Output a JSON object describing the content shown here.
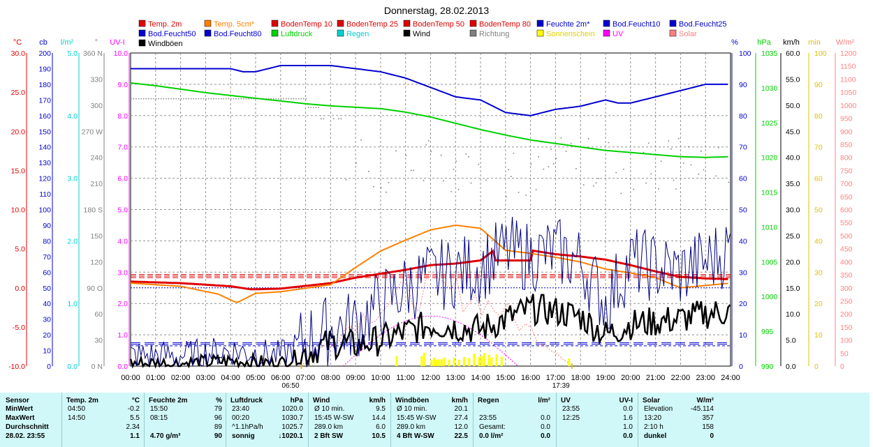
{
  "title": "Donnerstag, 28.02.2013",
  "colors": {
    "temp2m": "#e00000",
    "temp5cm": "#ff8000",
    "bodenTemp": "#e00000",
    "feuchte": "#0000d0",
    "luftdruck": "#00d000",
    "regen": "#00d0d0",
    "wind": "#000000",
    "richtung": "#808080",
    "sonne": "#ffff00",
    "uv": "#ff00ff",
    "solar": "#ff8080",
    "stats_bg": "#d0f8f8"
  },
  "legend": [
    {
      "label": "Temp. 2m",
      "color": "#e00000"
    },
    {
      "label": "Temp. 5cm*",
      "color": "#ff8000"
    },
    {
      "label": "BodenTemp 10",
      "color": "#e00000"
    },
    {
      "label": "BodenTemp 25",
      "color": "#e00000"
    },
    {
      "label": "BodenTemp 50",
      "color": "#e00000"
    },
    {
      "label": "BodenTemp 80",
      "color": "#e00000"
    },
    {
      "label": "Feuchte 2m*",
      "color": "#0000d0"
    },
    {
      "label": "Bod.Feucht10",
      "color": "#0000d0"
    },
    {
      "label": "Bod.Feucht25",
      "color": "#0000d0"
    },
    {
      "label": "Bod.Feucht50",
      "color": "#0000d0"
    },
    {
      "label": "Bod.Feucht80",
      "color": "#0000d0"
    },
    {
      "label": "Luftdruck",
      "color": "#00d000"
    },
    {
      "label": "Regen",
      "color": "#00d0d0"
    },
    {
      "label": "Wind",
      "color": "#000000"
    },
    {
      "label": "Richtung",
      "color": "#808080"
    },
    {
      "label": "Sonnenschein",
      "color": "#ffff00"
    },
    {
      "label": "UV",
      "color": "#ff00ff"
    },
    {
      "label": "Solar",
      "color": "#ff8080"
    },
    {
      "label": "Windböen",
      "color": "#000000"
    }
  ],
  "chart_data": {
    "type": "line",
    "title": "Donnerstag, 28.02.2013",
    "x_ticks": [
      "00:00",
      "01:00",
      "02:00",
      "03:00",
      "04:00",
      "05:00",
      "06:00",
      "07:00",
      "08:00",
      "09:00",
      "10:00",
      "11:00",
      "12:00",
      "13:00",
      "14:00",
      "15:00",
      "16:00",
      "17:00",
      "18:00",
      "19:00",
      "20:00",
      "21:00",
      "22:00",
      "23:00",
      "24:00"
    ],
    "sunrise": "06:50",
    "sunset": "17:39",
    "grid": true,
    "axes": [
      {
        "unit": "°C",
        "color": "#e00000",
        "ticks": [
          "30.0",
          "25.0",
          "20.0",
          "15.0",
          "10.0",
          "5.0",
          "0.0",
          "-5.0",
          "-10.0"
        ]
      },
      {
        "unit": "cb",
        "color": "#0000d0",
        "ticks": [
          "200",
          "190",
          "180",
          "170",
          "160",
          "150",
          "140",
          "130",
          "120",
          "110",
          "100",
          "90",
          "80",
          "70",
          "60",
          "50",
          "40",
          "30",
          "20",
          "10",
          "0"
        ]
      },
      {
        "unit": "l/m²",
        "color": "#00d0d0",
        "ticks": [
          "5.0",
          "4.0",
          "3.0",
          "2.0",
          "1.0",
          "0.0"
        ]
      },
      {
        "unit": "°",
        "color": "#808080",
        "ticks": [
          "360 N",
          "330",
          "300",
          "270 W",
          "240",
          "210",
          "180 S",
          "150",
          "120",
          "90 O",
          "60",
          "30",
          "0 N"
        ]
      },
      {
        "unit": "UV-I",
        "color": "#ff00ff",
        "ticks": [
          "10.0",
          "9.0",
          "8.0",
          "7.0",
          "6.0",
          "5.0",
          "4.0",
          "3.0",
          "2.0",
          "1.0",
          "0.0"
        ]
      },
      {
        "unit": "%",
        "color": "#0000d0",
        "ticks": [
          "100",
          "90",
          "80",
          "70",
          "60",
          "50",
          "40",
          "30",
          "20",
          "10",
          "0"
        ]
      },
      {
        "unit": "hPa",
        "color": "#00d000",
        "ticks": [
          "1035",
          "1030",
          "1025",
          "1020",
          "1015",
          "1010",
          "1005",
          "1000",
          "995",
          "990"
        ]
      },
      {
        "unit": "km/h",
        "color": "#000000",
        "ticks": [
          "60.0",
          "55.0",
          "50.0",
          "45.0",
          "40.0",
          "35.0",
          "30.0",
          "25.0",
          "20.0",
          "15.0",
          "10.0",
          "5.0",
          "0.0"
        ]
      },
      {
        "unit": "min",
        "color": "#e0c000",
        "ticks": [
          "100",
          "90",
          "80",
          "70",
          "60",
          "50",
          "40",
          "30",
          "20",
          "10",
          "0"
        ]
      },
      {
        "unit": "W/m²",
        "color": "#ff8080",
        "ticks": [
          "1200",
          "1150",
          "1100",
          "1050",
          "1000",
          "950",
          "900",
          "850",
          "800",
          "750",
          "700",
          "650",
          "600",
          "550",
          "500",
          "450",
          "400",
          "350",
          "300",
          "250",
          "200",
          "150",
          "100",
          "50",
          "0"
        ]
      }
    ],
    "series": [
      {
        "name": "Temp. 2m",
        "unit": "°C",
        "x": [
          0,
          2,
          4,
          4.83,
          6,
          8,
          9,
          11,
          12,
          13,
          14,
          14.83,
          16,
          17,
          18,
          19,
          20,
          21,
          22,
          23,
          24
        ],
        "y": [
          0.8,
          0.6,
          0.2,
          -0.2,
          -0.1,
          0.6,
          1.3,
          2.3,
          2.9,
          3.1,
          3.5,
          5.5,
          4.8,
          4.3,
          4.0,
          3.6,
          2.9,
          2.1,
          1.4,
          1.2,
          1.1
        ]
      },
      {
        "name": "Temp. 5cm*",
        "unit": "°C",
        "x": [
          0,
          2,
          3.5,
          4.25,
          5,
          6,
          8,
          9,
          10,
          11,
          12,
          13,
          14,
          15,
          16,
          17,
          18,
          19,
          20,
          21,
          22,
          23,
          24
        ],
        "y": [
          0.6,
          0.2,
          -0.8,
          -1.9,
          -0.7,
          -0.5,
          0.4,
          2.6,
          4.7,
          6.1,
          7.4,
          8.0,
          7.6,
          4.8,
          4.4,
          3.9,
          3.3,
          2.4,
          1.9,
          1.3,
          0.0,
          0.3,
          0.6
        ]
      },
      {
        "name": "Feuchte 2m*",
        "unit": "%",
        "x": [
          0,
          4,
          4.5,
          5,
          6,
          8,
          9,
          10,
          11,
          12,
          13,
          14,
          15,
          16,
          17,
          18,
          18.5,
          19,
          19.5,
          20,
          21,
          22,
          23,
          24
        ],
        "y": [
          95,
          95,
          94,
          94,
          96,
          96,
          95,
          94,
          92,
          89,
          86,
          85,
          81,
          80,
          82,
          83,
          84,
          85,
          84,
          84,
          86,
          88,
          90,
          90
        ]
      },
      {
        "name": "Luftdruck",
        "unit": "hPa",
        "x": [
          0,
          1,
          2,
          3,
          4,
          5,
          6,
          7,
          8,
          9,
          10,
          11,
          12,
          13,
          14,
          15,
          16,
          17,
          18,
          19,
          20,
          21,
          22,
          23,
          24
        ],
        "y": [
          1030.7,
          1030.3,
          1029.8,
          1029.3,
          1028.9,
          1028.5,
          1028.1,
          1027.7,
          1027.4,
          1027.2,
          1027.0,
          1026.5,
          1025.8,
          1024.9,
          1024.0,
          1023.2,
          1022.5,
          1022.0,
          1021.5,
          1021.0,
          1020.7,
          1020.4,
          1020.1,
          1020.0,
          1020.1
        ]
      },
      {
        "name": "Wind",
        "unit": "km/h",
        "x": [
          0,
          2,
          4,
          6,
          7,
          8,
          9,
          10,
          11,
          12,
          13,
          14,
          15,
          16,
          17,
          18,
          19,
          20,
          21,
          22,
          23,
          24
        ],
        "y": [
          0.5,
          0.5,
          1.0,
          0.5,
          2.5,
          4.5,
          4.0,
          5.0,
          6.5,
          8.0,
          7.5,
          7.0,
          9.0,
          11.0,
          10.5,
          9.5,
          6.0,
          8.0,
          8.5,
          9.0,
          10.0,
          10.5
        ]
      },
      {
        "name": "Windböen",
        "unit": "km/h",
        "x": [
          0,
          2,
          4,
          6,
          7,
          8,
          9,
          10,
          11,
          12,
          13,
          14,
          15,
          16,
          17,
          18,
          19,
          20,
          21,
          22,
          23,
          24
        ],
        "y": [
          2.0,
          2.0,
          3.0,
          2.0,
          5.0,
          7.0,
          8.0,
          12.0,
          15.0,
          17.0,
          18.0,
          19.0,
          22.0,
          21.0,
          22.0,
          20.0,
          12.0,
          20.0,
          19.0,
          18.0,
          20.0,
          22.5
        ]
      }
    ],
    "soil_temp_levels_celsius": [
      1.3,
      1.5,
      1.7
    ],
    "soil_moisture_levels_cb": [
      13,
      14,
      15
    ]
  },
  "stats": {
    "col0": {
      "header": "Sensor",
      "rows": [
        "MinWert",
        "MaxWert",
        "Durchschnitt",
        "28.02. 23:55"
      ]
    },
    "temp": {
      "header": "Temp. 2m",
      "unit": "°C",
      "rows": [
        [
          "04:50",
          "-0.2"
        ],
        [
          "14:50",
          "5.5"
        ],
        [
          "",
          "2.34"
        ],
        [
          "",
          "1.1"
        ]
      ]
    },
    "feuchte": {
      "header": "Feuchte 2m",
      "unit": "%",
      "rows": [
        [
          "15:50",
          "79"
        ],
        [
          "08:15",
          "96"
        ],
        [
          "",
          "89"
        ],
        [
          "4.70 g/m³",
          "90"
        ]
      ]
    },
    "luftdruck": {
      "header": "Luftdruck",
      "unit": "hPa",
      "rows": [
        [
          "23:40",
          "1020.0"
        ],
        [
          "00:20",
          "1030.7"
        ],
        [
          "^1.1hPa/h",
          "1025.7"
        ],
        [
          "sonnig",
          "↓1020.1"
        ]
      ]
    },
    "wind": {
      "header": "Wind",
      "unit": "km/h",
      "rows": [
        [
          "Ø 10 min.",
          "9.5"
        ],
        [
          "15:45  W-SW",
          "14.4"
        ],
        [
          "289.0 km",
          "6.0"
        ],
        [
          "2 Bft SW",
          "10.5"
        ]
      ]
    },
    "boeen": {
      "header": "Windböen",
      "unit": "km/h",
      "rows": [
        [
          "Ø 10 min.",
          "20.1"
        ],
        [
          "15:45  W-SW",
          "27.4"
        ],
        [
          "289.0 km",
          "12.0"
        ],
        [
          "4 Bft W-SW",
          "22.5"
        ]
      ]
    },
    "regen": {
      "header": "Regen",
      "unit": "l/m²",
      "rows": [
        [
          "",
          ""
        ],
        [
          "23:55",
          "0.0"
        ],
        [
          "Gesamt:",
          "0.0"
        ],
        [
          "0.0 l/m²",
          "0.0"
        ]
      ]
    },
    "uv": {
      "header": "UV",
      "unit": "UV-I",
      "rows": [
        [
          "23:55",
          "0.0"
        ],
        [
          "12:25",
          "1.6"
        ],
        [
          "",
          "1.0"
        ],
        [
          "",
          "0.0"
        ]
      ]
    },
    "solar": {
      "header": "Solar",
      "unit": "W/m²",
      "rows": [
        [
          "Elevation",
          "-45.114"
        ],
        [
          "13:20",
          "357"
        ],
        [
          "2:10 h",
          "158"
        ],
        [
          "dunkel",
          "0"
        ]
      ]
    }
  }
}
